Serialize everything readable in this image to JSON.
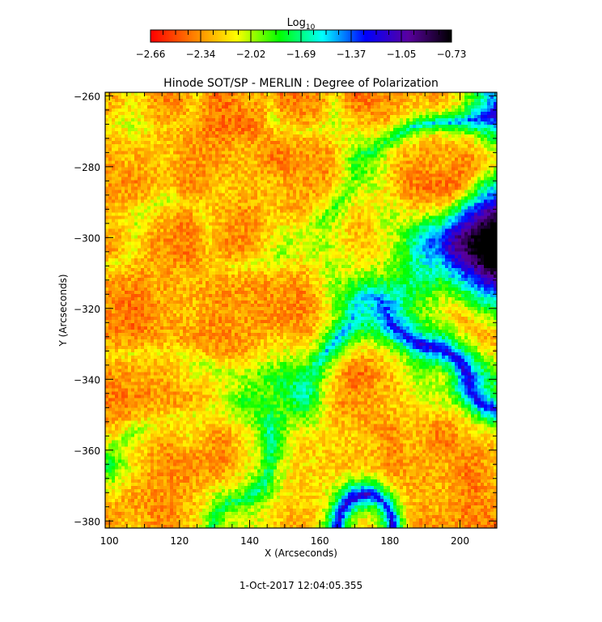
{
  "chart_data": {
    "type": "heatmap",
    "title": "Hinode SOT/SP - MERLIN : Degree of Polarization",
    "xlabel": "X (Arcseconds)",
    "ylabel": "Y (Arcseconds)",
    "xlim": [
      98.8,
      210.5
    ],
    "ylim": [
      -382,
      -259
    ],
    "x_ticks": [
      "100",
      "120",
      "140",
      "160",
      "180",
      "200"
    ],
    "y_ticks": [
      "-260",
      "-280",
      "-300",
      "-320",
      "-340",
      "-360",
      "-380"
    ],
    "colorbar": {
      "label": "Log",
      "label_subscript": "10",
      "range": [
        -2.66,
        -0.73
      ],
      "ticks": [
        "-2.66",
        "-2.34",
        "-2.02",
        "-1.69",
        "-1.37",
        "-1.05",
        "-0.73"
      ],
      "colors": [
        "#ff0000",
        "#ff8000",
        "#ffff00",
        "#00ff00",
        "#00ffff",
        "#0000ff",
        "#5a00a0",
        "#000000"
      ]
    },
    "timestamp": "1-Oct-2017 12:04:05.355"
  }
}
